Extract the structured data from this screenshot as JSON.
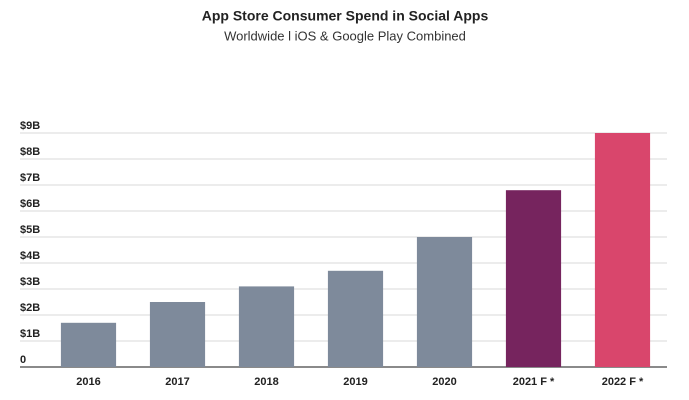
{
  "chart_data": {
    "type": "bar",
    "title": "App Store Consumer Spend in Social Apps",
    "subtitle": "Worldwide l iOS & Google Play Combined",
    "categories": [
      "2016",
      "2017",
      "2018",
      "2019",
      "2020",
      "2021 F *",
      "2022 F *"
    ],
    "values": [
      1.7,
      2.5,
      3.1,
      3.7,
      5.0,
      6.8,
      9.0
    ],
    "colors": [
      "#7e8a9b",
      "#7e8a9b",
      "#7e8a9b",
      "#7e8a9b",
      "#7e8a9b",
      "#76245e",
      "#d9466c"
    ],
    "ylim": [
      0,
      9
    ],
    "yticks": [
      0,
      {
        "value": 1,
        "label": "$1B"
      },
      {
        "value": 2,
        "label": "$2B"
      },
      {
        "value": 3,
        "label": "$3B"
      },
      {
        "value": 4,
        "label": "$4B"
      },
      {
        "value": 5,
        "label": "$5B"
      },
      {
        "value": 6,
        "label": "$6B"
      },
      {
        "value": 7,
        "label": "$7B"
      },
      {
        "value": 8,
        "label": "$8B"
      },
      {
        "value": 9,
        "label": "$9B"
      }
    ],
    "grid": true
  }
}
